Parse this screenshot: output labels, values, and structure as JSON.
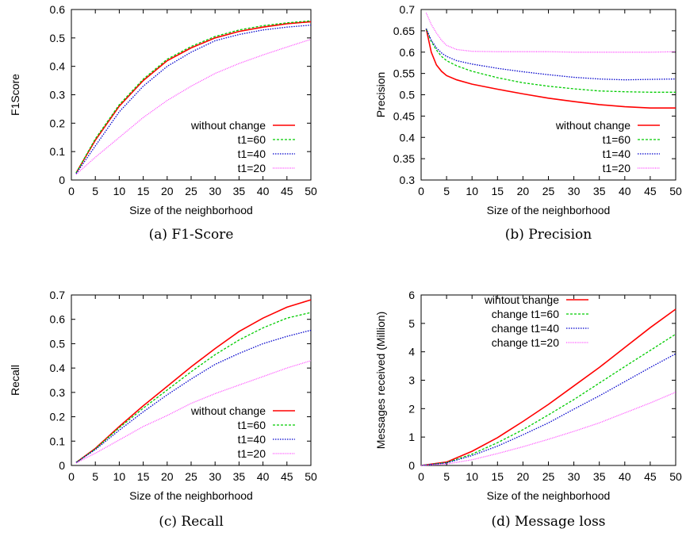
{
  "colors": {
    "without change": "#ff0000",
    "t1=60": "#00cc00",
    "t1=40": "#0000cc",
    "t1=20": "#ff44ff"
  },
  "chart_data": [
    {
      "type": "line",
      "caption": "(a) F1-Score",
      "xlabel": "Size of the neighborhood",
      "ylabel": "F1Score",
      "xlim": [
        0,
        50
      ],
      "ylim": [
        0,
        0.6
      ],
      "xticks": [
        0,
        5,
        10,
        15,
        20,
        25,
        30,
        35,
        40,
        45,
        50
      ],
      "yticks": [
        0,
        0.1,
        0.2,
        0.3,
        0.4,
        0.5,
        0.6
      ],
      "legend_position": "bottom-right",
      "x": [
        1,
        5,
        10,
        15,
        20,
        25,
        30,
        35,
        40,
        45,
        50
      ],
      "series": [
        {
          "name": "without change",
          "style": "solid",
          "values": [
            0.025,
            0.14,
            0.26,
            0.35,
            0.42,
            0.465,
            0.5,
            0.523,
            0.538,
            0.55,
            0.557
          ]
        },
        {
          "name": "t1=60",
          "style": "dashed",
          "values": [
            0.025,
            0.145,
            0.265,
            0.355,
            0.425,
            0.47,
            0.505,
            0.528,
            0.543,
            0.553,
            0.56
          ]
        },
        {
          "name": "t1=40",
          "style": "dotted",
          "values": [
            0.022,
            0.12,
            0.24,
            0.33,
            0.4,
            0.45,
            0.49,
            0.512,
            0.528,
            0.538,
            0.545
          ]
        },
        {
          "name": "t1=20",
          "style": "dotted-fine",
          "values": [
            0.02,
            0.08,
            0.15,
            0.22,
            0.28,
            0.33,
            0.375,
            0.41,
            0.44,
            0.468,
            0.495
          ]
        }
      ]
    },
    {
      "type": "line",
      "caption": "(b) Precision",
      "xlabel": "Size of the neighborhood",
      "ylabel": "Precision",
      "xlim": [
        0,
        50
      ],
      "ylim": [
        0.3,
        0.7
      ],
      "xticks": [
        0,
        5,
        10,
        15,
        20,
        25,
        30,
        35,
        40,
        45,
        50
      ],
      "yticks": [
        0.3,
        0.35,
        0.4,
        0.45,
        0.5,
        0.55,
        0.6,
        0.65,
        0.7
      ],
      "legend_position": "bottom-right",
      "x": [
        1,
        2,
        3,
        4,
        5,
        7,
        10,
        15,
        20,
        25,
        30,
        35,
        40,
        45,
        50
      ],
      "series": [
        {
          "name": "without change",
          "style": "solid",
          "values": [
            0.655,
            0.6,
            0.57,
            0.555,
            0.545,
            0.535,
            0.525,
            0.513,
            0.502,
            0.492,
            0.484,
            0.477,
            0.472,
            0.469,
            0.469
          ]
        },
        {
          "name": "t1=60",
          "style": "dashed",
          "values": [
            0.655,
            0.625,
            0.605,
            0.59,
            0.58,
            0.568,
            0.555,
            0.54,
            0.528,
            0.52,
            0.514,
            0.509,
            0.507,
            0.506,
            0.506
          ]
        },
        {
          "name": "t1=40",
          "style": "dotted",
          "values": [
            0.655,
            0.628,
            0.61,
            0.598,
            0.59,
            0.58,
            0.572,
            0.562,
            0.554,
            0.547,
            0.541,
            0.537,
            0.535,
            0.536,
            0.537
          ]
        },
        {
          "name": "t1=20",
          "style": "dotted-fine",
          "values": [
            0.692,
            0.665,
            0.645,
            0.628,
            0.616,
            0.606,
            0.602,
            0.601,
            0.601,
            0.601,
            0.6,
            0.6,
            0.6,
            0.6,
            0.601
          ]
        }
      ]
    },
    {
      "type": "line",
      "caption": "(c) Recall",
      "xlabel": "Size of the neighborhood",
      "ylabel": "Recall",
      "xlim": [
        0,
        50
      ],
      "ylim": [
        0,
        0.7
      ],
      "xticks": [
        0,
        5,
        10,
        15,
        20,
        25,
        30,
        35,
        40,
        45,
        50
      ],
      "yticks": [
        0,
        0.1,
        0.2,
        0.3,
        0.4,
        0.5,
        0.6,
        0.7
      ],
      "legend_position": "bottom-right",
      "x": [
        1,
        5,
        10,
        15,
        20,
        25,
        30,
        35,
        40,
        45,
        50
      ],
      "series": [
        {
          "name": "without change",
          "style": "solid",
          "values": [
            0.012,
            0.07,
            0.16,
            0.245,
            0.325,
            0.405,
            0.48,
            0.55,
            0.605,
            0.65,
            0.68
          ]
        },
        {
          "name": "t1=60",
          "style": "dashed",
          "values": [
            0.012,
            0.068,
            0.155,
            0.235,
            0.31,
            0.385,
            0.455,
            0.515,
            0.565,
            0.605,
            0.628
          ]
        },
        {
          "name": "t1=40",
          "style": "dotted",
          "values": [
            0.012,
            0.065,
            0.145,
            0.22,
            0.29,
            0.355,
            0.415,
            0.46,
            0.5,
            0.53,
            0.555
          ]
        },
        {
          "name": "t1=20",
          "style": "dotted-fine",
          "values": [
            0.01,
            0.05,
            0.105,
            0.16,
            0.205,
            0.255,
            0.295,
            0.33,
            0.365,
            0.4,
            0.43
          ]
        }
      ]
    },
    {
      "type": "line",
      "caption": "(d) Message loss",
      "xlabel": "Size of the neighborhood",
      "ylabel": "Messages received (Million)",
      "xlim": [
        0,
        50
      ],
      "ylim": [
        0,
        6
      ],
      "xticks": [
        0,
        5,
        10,
        15,
        20,
        25,
        30,
        35,
        40,
        45,
        50
      ],
      "yticks": [
        0,
        1,
        2,
        3,
        4,
        5,
        6
      ],
      "legend_position": "top-left",
      "x": [
        0,
        5,
        10,
        15,
        20,
        25,
        30,
        35,
        40,
        45,
        50
      ],
      "series": [
        {
          "name": "wihtout change",
          "style": "solid",
          "values": [
            0,
            0.12,
            0.5,
            0.98,
            1.55,
            2.15,
            2.8,
            3.45,
            4.15,
            4.85,
            5.5
          ]
        },
        {
          "name": "change t1=60",
          "style": "dashed",
          "values": [
            0,
            0.1,
            0.4,
            0.8,
            1.26,
            1.78,
            2.32,
            2.9,
            3.48,
            4.05,
            4.62
          ]
        },
        {
          "name": "change t1=40",
          "style": "dotted",
          "values": [
            0,
            0.09,
            0.35,
            0.68,
            1.08,
            1.5,
            1.98,
            2.45,
            2.95,
            3.45,
            3.93
          ]
        },
        {
          "name": "change t1=20",
          "style": "dotted-fine",
          "values": [
            0,
            0.05,
            0.2,
            0.42,
            0.66,
            0.92,
            1.2,
            1.5,
            1.85,
            2.2,
            2.58
          ]
        }
      ]
    }
  ]
}
